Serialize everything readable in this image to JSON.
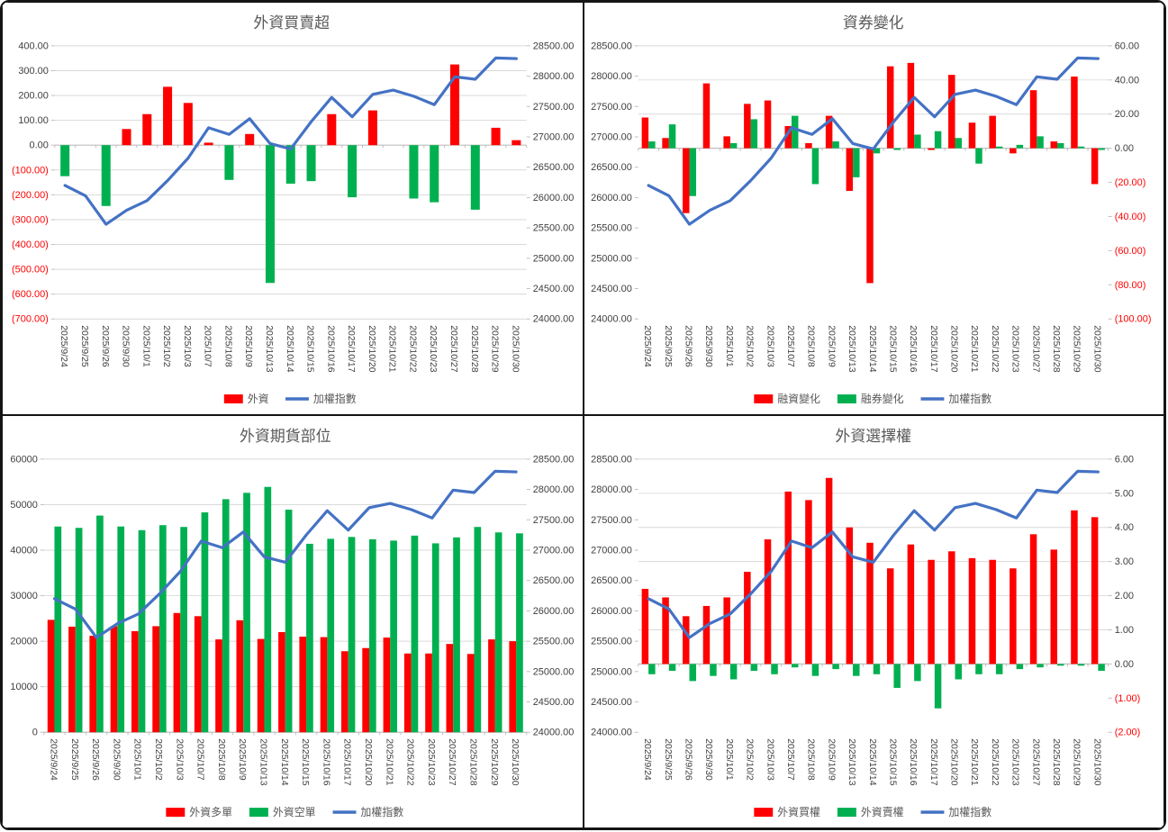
{
  "page": {
    "background": "#FFFFFF",
    "border_color": "#141414"
  },
  "colors": {
    "bar_red": "#FF0000",
    "bar_green": "#00B050",
    "index_line_blue": "#4472C4",
    "gridline": "#D9D9D9",
    "axis_line": "#BFBFBF",
    "axis_label": "#404040",
    "negative_axis_label": "#FF0000",
    "title_text": "#595959"
  },
  "chart_data": {
    "type": "bar",
    "layout": "2x2 grid of clustered-bar + line combo charts, shared categories and shared index line",
    "categories": [
      "2025/9/24",
      "2025/9/25",
      "2025/9/26",
      "2025/9/30",
      "2025/10/1",
      "2025/10/2",
      "2025/10/3",
      "2025/10/7",
      "2025/10/8",
      "2025/10/9",
      "2025/10/13",
      "2025/10/14",
      "2025/10/15",
      "2025/10/16",
      "2025/10/17",
      "2025/10/20",
      "2025/10/21",
      "2025/10/22",
      "2025/10/23",
      "2025/10/27",
      "2025/10/28",
      "2025/10/29",
      "2025/10/30"
    ],
    "index_line": {
      "name": "加權指數",
      "color": "#4472C4",
      "axis_range": [
        24000,
        28500
      ],
      "values": [
        26200,
        26030,
        25560,
        25790,
        25950,
        26280,
        26650,
        27150,
        27040,
        27300,
        26890,
        26800,
        27250,
        27650,
        27330,
        27700,
        27770,
        27670,
        27530,
        27990,
        27950,
        28300,
        28290
      ]
    },
    "charts": [
      {
        "title": "外資買賣超",
        "position": "top-left",
        "bar_axis": {
          "side": "left",
          "max": 400,
          "min": -700,
          "step": 100,
          "decimals": 2,
          "negative_format": "red-parentheses"
        },
        "index_axis": {
          "side": "right",
          "max": 28500,
          "min": 24000,
          "step": 500,
          "decimals": 2
        },
        "series": [
          {
            "name": "外資",
            "type": "bar",
            "color": "#FF0000",
            "negative_color": "#00B050",
            "values": [
              -125,
              0,
              -245,
              65,
              125,
              235,
              170,
              10,
              -140,
              45,
              -555,
              -155,
              -145,
              125,
              -210,
              140,
              0,
              -215,
              -230,
              325,
              -260,
              70,
              20
            ]
          }
        ],
        "legend": [
          {
            "label": "外資",
            "swatch": "bar",
            "color": "#FF0000"
          },
          {
            "label": "加權指數",
            "swatch": "line",
            "color": "#4472C4"
          }
        ]
      },
      {
        "title": "資券變化",
        "position": "top-right",
        "bar_axis": {
          "side": "right",
          "max": 60,
          "min": -100,
          "step": 20,
          "decimals": 2,
          "negative_format": "red-parentheses"
        },
        "index_axis": {
          "side": "left",
          "max": 28500,
          "min": 24000,
          "step": 500,
          "decimals": 2
        },
        "series": [
          {
            "name": "融資變化",
            "type": "bar",
            "color": "#FF0000",
            "values": [
              18,
              6,
              -38,
              38,
              7,
              26,
              28,
              13,
              3,
              19,
              -25,
              -79,
              48,
              50,
              -1,
              43,
              15,
              19,
              -3,
              34,
              4,
              42,
              -21
            ]
          },
          {
            "name": "融券變化",
            "type": "bar",
            "color": "#00B050",
            "values": [
              4,
              14,
              -28,
              0,
              3,
              17,
              0,
              19,
              -21,
              4,
              -17,
              -3,
              -1,
              8,
              10,
              6,
              -9,
              1,
              2,
              7,
              3,
              1,
              -1
            ]
          }
        ],
        "legend": [
          {
            "label": "融資變化",
            "swatch": "bar",
            "color": "#FF0000"
          },
          {
            "label": "融券變化",
            "swatch": "bar",
            "color": "#00B050"
          },
          {
            "label": "加權指數",
            "swatch": "line",
            "color": "#4472C4"
          }
        ]
      },
      {
        "title": "外資期貨部位",
        "position": "bottom-left",
        "bar_axis": {
          "side": "left",
          "max": 60000,
          "min": 0,
          "step": 10000,
          "decimals": 0,
          "negative_format": "none"
        },
        "index_axis": {
          "side": "right",
          "max": 28500,
          "min": 24000,
          "step": 500,
          "decimals": 2
        },
        "series": [
          {
            "name": "外資多單",
            "type": "bar",
            "color": "#FF0000",
            "values": [
              24700,
              23200,
              21200,
              23300,
              22200,
              23300,
              26200,
              25500,
              20400,
              24600,
              20500,
              22000,
              21000,
              20900,
              17800,
              18500,
              20800,
              17300,
              17300,
              19400,
              17200,
              20400,
              20000
            ]
          },
          {
            "name": "外資空單",
            "type": "bar",
            "color": "#00B050",
            "values": [
              45200,
              44900,
              47600,
              45200,
              44400,
              45500,
              45100,
              48300,
              51200,
              52600,
              53900,
              48900,
              41400,
              42500,
              42900,
              42400,
              42100,
              43200,
              41500,
              42800,
              45100,
              43900,
              43700
            ]
          }
        ],
        "legend": [
          {
            "label": "外資多單",
            "swatch": "bar",
            "color": "#FF0000"
          },
          {
            "label": "外資空單",
            "swatch": "bar",
            "color": "#00B050"
          },
          {
            "label": "加權指數",
            "swatch": "line",
            "color": "#4472C4"
          }
        ]
      },
      {
        "title": "外資選擇權",
        "position": "bottom-right",
        "bar_axis": {
          "side": "right",
          "max": 6,
          "min": -2,
          "step": 1,
          "decimals": 2,
          "negative_format": "red-parentheses"
        },
        "index_axis": {
          "side": "left",
          "max": 28500,
          "min": 24000,
          "step": 500,
          "decimals": 2
        },
        "series": [
          {
            "name": "外資買權",
            "type": "bar",
            "color": "#FF0000",
            "values": [
              2.2,
              1.95,
              1.4,
              1.7,
              1.95,
              2.7,
              3.65,
              5.05,
              4.8,
              5.45,
              4.0,
              3.55,
              2.8,
              3.5,
              3.05,
              3.3,
              3.1,
              3.05,
              2.8,
              3.8,
              3.35,
              4.5,
              4.3
            ]
          },
          {
            "name": "外資賣權",
            "type": "bar",
            "color": "#00B050",
            "values": [
              -0.3,
              -0.2,
              -0.5,
              -0.35,
              -0.45,
              -0.2,
              -0.3,
              -0.1,
              -0.35,
              -0.15,
              -0.35,
              -0.3,
              -0.7,
              -0.5,
              -1.3,
              -0.45,
              -0.3,
              -0.3,
              -0.15,
              -0.1,
              -0.05,
              -0.05,
              -0.2
            ]
          }
        ],
        "legend": [
          {
            "label": "外資買權",
            "swatch": "bar",
            "color": "#FF0000"
          },
          {
            "label": "外資賣權",
            "swatch": "bar",
            "color": "#00B050"
          },
          {
            "label": "加權指數",
            "swatch": "line",
            "color": "#4472C4"
          }
        ]
      }
    ]
  }
}
